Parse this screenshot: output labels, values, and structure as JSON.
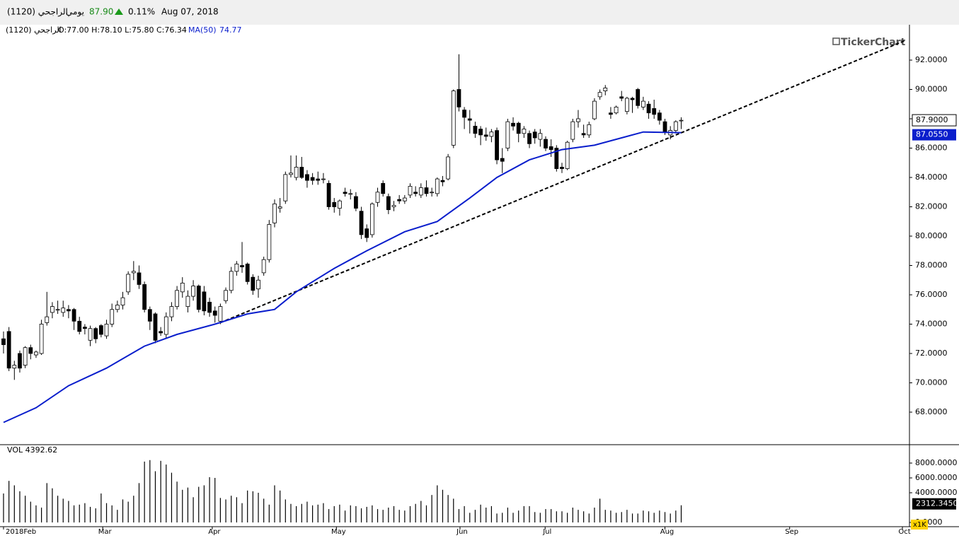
{
  "header": {
    "symbol": "الراجحي (1120)",
    "period": "يومي",
    "price": "87.90",
    "change": "0.11%",
    "date": "Aug 07, 2018"
  },
  "chart_data": {
    "type": "candlestick",
    "legend": {
      "symbol": "الراجحي (1120)",
      "ohlc": "O:77.00 H:78.10 L:75.80 C:76.34",
      "ma_name": "MA(50)",
      "ma_value": "74.77"
    },
    "logo": "TickerChart",
    "xlim": [
      -0.65,
      167.1
    ],
    "xticks": [
      {
        "value": 0,
        "label": "2018Feb"
      },
      {
        "value": 18.3,
        "label": "Mar"
      },
      {
        "value": 38.5,
        "label": "Apr"
      },
      {
        "value": 61.4,
        "label": "May"
      },
      {
        "value": 84.2,
        "label": "Jun"
      },
      {
        "value": 99.9,
        "label": "Jul"
      },
      {
        "value": 122,
        "label": "Aug"
      },
      {
        "value": 145,
        "label": "Sep"
      },
      {
        "value": 165.8,
        "label": "Oct"
      }
    ],
    "ylim": [
      65.83,
      94.17
    ],
    "yticks": [
      {
        "value": 68,
        "label": "68.0000"
      },
      {
        "value": 70,
        "label": "70.0000"
      },
      {
        "value": 72,
        "label": "72.0000"
      },
      {
        "value": 74,
        "label": "74.0000"
      },
      {
        "value": 76,
        "label": "76.0000"
      },
      {
        "value": 78,
        "label": "78.0000"
      },
      {
        "value": 80,
        "label": "80.0000"
      },
      {
        "value": 82,
        "label": "82.0000"
      },
      {
        "value": 84,
        "label": "84.0000"
      },
      {
        "value": 86,
        "label": "86.0000"
      },
      {
        "value": 88,
        "label": "88.0000"
      },
      {
        "value": 90,
        "label": "90.0000"
      },
      {
        "value": 92,
        "label": "92.0000"
      }
    ],
    "open": [
      73.0,
      73.5,
      71.0,
      72.0,
      71.2,
      72.4,
      71.9,
      72.0,
      74.1,
      74.8,
      75.0,
      74.8,
      75.0,
      75.0,
      74.2,
      73.8,
      72.9,
      73.7,
      73.9,
      73.2,
      74.0,
      75.0,
      75.3,
      76.2,
      77.5,
      77.5,
      76.7,
      75.0,
      74.7,
      73.5,
      73.3,
      74.5,
      75.2,
      76.2,
      75.2,
      75.9,
      76.6,
      76.2,
      75.5,
      74.9,
      74.2,
      75.6,
      76.3,
      77.6,
      78.0,
      78.1,
      77.2,
      76.4,
      77.5,
      78.4,
      80.9,
      81.9,
      82.4,
      84.2,
      84.0,
      84.7,
      84.2,
      84.0,
      83.9,
      83.9,
      83.6,
      82.3,
      81.9,
      83.0,
      82.9,
      82.7,
      81.7,
      80.5,
      80.1,
      82.3,
      83.6,
      82.7,
      82.0,
      82.5,
      82.4,
      82.8,
      83.0,
      82.8,
      83.3,
      83.0,
      82.9,
      83.8,
      83.9,
      86.2,
      90.0,
      88.6,
      88.0,
      87.5,
      87.3,
      86.9,
      86.8,
      87.2,
      85.3,
      86.0,
      87.7,
      87.7,
      87.0,
      87.0,
      87.1,
      86.6,
      86.6,
      86.1,
      86.0,
      84.7,
      84.6,
      86.6,
      87.8,
      87.0,
      86.9,
      88.0,
      89.5,
      89.9,
      88.4,
      88.4,
      89.5,
      88.5,
      89.4,
      90.0,
      88.8,
      89.0,
      88.7,
      88.4,
      87.8,
      86.9,
      87.2,
      87.9
    ],
    "close": [
      72.6,
      71.0,
      71.2,
      71.0,
      72.4,
      72.0,
      72.1,
      74.0,
      74.5,
      75.2,
      75.0,
      75.1,
      74.9,
      74.2,
      73.5,
      73.7,
      73.7,
      73.0,
      73.3,
      74.0,
      75.0,
      75.3,
      75.8,
      77.4,
      77.6,
      76.7,
      75.0,
      74.2,
      72.9,
      73.4,
      74.5,
      75.2,
      76.3,
      76.8,
      75.9,
      76.6,
      75.0,
      74.9,
      74.8,
      74.6,
      75.2,
      76.3,
      77.6,
      78.1,
      77.9,
      76.9,
      76.3,
      77.0,
      78.4,
      80.8,
      82.2,
      82.0,
      84.2,
      84.3,
      84.7,
      84.0,
      83.8,
      83.8,
      83.8,
      83.9,
      82.0,
      82.0,
      82.4,
      82.9,
      82.9,
      81.9,
      80.1,
      79.9,
      82.2,
      83.0,
      82.9,
      81.8,
      82.1,
      82.4,
      82.6,
      83.4,
      82.9,
      83.3,
      82.9,
      83.0,
      83.9,
      83.7,
      85.4,
      89.9,
      88.8,
      88.1,
      87.9,
      87.0,
      86.9,
      86.8,
      87.1,
      85.2,
      85.1,
      87.8,
      87.5,
      87.0,
      87.3,
      86.3,
      86.7,
      87.0,
      86.0,
      85.9,
      84.6,
      84.6,
      86.4,
      87.8,
      88.0,
      86.9,
      87.6,
      89.2,
      89.8,
      90.1,
      88.3,
      88.8,
      89.4,
      89.4,
      89.3,
      88.9,
      89.2,
      88.4,
      88.3,
      87.9,
      87.1,
      87.2,
      87.8,
      87.9
    ],
    "high": [
      73.5,
      73.8,
      71.5,
      72.2,
      72.5,
      72.6,
      72.2,
      74.3,
      76.2,
      75.5,
      75.6,
      75.6,
      75.3,
      75.1,
      74.5,
      74.0,
      73.9,
      73.8,
      74.0,
      74.3,
      75.4,
      75.6,
      76.2,
      77.6,
      78.3,
      78.0,
      76.9,
      75.2,
      74.8,
      73.8,
      74.8,
      75.5,
      76.6,
      77.2,
      76.3,
      77.0,
      76.7,
      76.6,
      75.8,
      75.2,
      75.4,
      76.5,
      77.9,
      78.3,
      79.6,
      78.2,
      77.4,
      77.3,
      78.6,
      81.1,
      82.5,
      82.6,
      84.4,
      85.5,
      85.5,
      85.4,
      84.5,
      84.3,
      84.4,
      84.3,
      83.8,
      82.6,
      82.5,
      83.3,
      83.2,
      83.0,
      82.0,
      80.8,
      82.3,
      83.3,
      83.8,
      82.9,
      82.4,
      82.8,
      82.8,
      83.6,
      83.4,
      83.6,
      83.8,
      83.3,
      84.0,
      84.1,
      85.6,
      90.0,
      92.4,
      88.8,
      88.6,
      87.8,
      87.5,
      87.4,
      87.3,
      87.4,
      86.0,
      88.0,
      88.1,
      87.8,
      87.5,
      87.2,
      87.3,
      87.3,
      86.8,
      86.6,
      86.2,
      85.0,
      86.5,
      88.0,
      88.6,
      87.6,
      87.8,
      89.4,
      90.0,
      90.3,
      88.8,
      88.9,
      89.9,
      89.5,
      89.5,
      90.1,
      89.5,
      89.2,
      89.3,
      88.6,
      88.0,
      87.5,
      87.9,
      88.1
    ],
    "low": [
      72.0,
      70.8,
      70.2,
      70.7,
      71.0,
      71.6,
      71.7,
      71.9,
      73.9,
      74.4,
      74.7,
      74.5,
      74.4,
      73.6,
      73.3,
      73.3,
      72.5,
      72.7,
      73.1,
      73.0,
      73.8,
      74.8,
      75.0,
      76.0,
      77.0,
      76.4,
      74.8,
      73.6,
      72.7,
      73.2,
      73.0,
      74.2,
      75.0,
      75.8,
      74.8,
      75.6,
      74.8,
      74.6,
      74.5,
      74.1,
      74.0,
      75.4,
      76.1,
      77.3,
      77.5,
      76.7,
      76.0,
      75.8,
      77.3,
      78.2,
      80.6,
      81.6,
      82.2,
      84.0,
      83.8,
      83.9,
      83.3,
      83.5,
      83.5,
      83.6,
      81.8,
      81.6,
      81.4,
      82.7,
      82.5,
      81.7,
      79.8,
      79.6,
      79.9,
      82.0,
      82.7,
      81.5,
      81.7,
      82.2,
      82.2,
      82.6,
      82.7,
      82.6,
      82.7,
      82.7,
      82.7,
      83.4,
      83.8,
      86.0,
      88.5,
      87.3,
      87.0,
      86.7,
      86.2,
      86.5,
      86.4,
      84.9,
      84.3,
      85.8,
      87.2,
      86.4,
      86.7,
      86.0,
      86.3,
      86.1,
      85.8,
      85.4,
      84.4,
      84.3,
      84.5,
      86.4,
      87.4,
      86.7,
      86.7,
      87.9,
      89.3,
      89.6,
      88.0,
      88.3,
      89.2,
      88.3,
      88.4,
      88.7,
      88.6,
      88.0,
      88.0,
      87.6,
      86.9,
      86.6,
      87.0,
      87.3
    ],
    "up_color": "#ffffff",
    "down_color": "#000000",
    "ma": {
      "name": "MA(50)",
      "color": "#0a1ecc",
      "x": [
        0,
        6,
        12,
        19,
        26,
        32,
        39,
        45,
        50,
        54,
        61,
        67,
        74,
        80,
        86,
        91,
        97,
        103,
        109,
        114,
        118,
        125
      ],
      "values": [
        67.3,
        68.3,
        69.8,
        71.0,
        72.5,
        73.3,
        74.0,
        74.7,
        75.0,
        76.2,
        77.8,
        79.0,
        80.3,
        81.0,
        82.6,
        84.0,
        85.2,
        85.9,
        86.2,
        86.7,
        87.1,
        87.055
      ]
    },
    "trendline": {
      "x": [
        40,
        166.4
      ],
      "values": [
        74.1,
        93.35
      ]
    },
    "last_price": {
      "value": 87.9,
      "label": "87.9000"
    },
    "ma_last": {
      "value": 87.055,
      "label": "87.0550"
    },
    "volume_title": "VOL 4392.62",
    "volume": [
      3900,
      5600,
      5000,
      4200,
      3600,
      2800,
      2300,
      2000,
      5300,
      4600,
      3600,
      3200,
      2900,
      2300,
      2400,
      2600,
      2100,
      1900,
      3900,
      2600,
      2300,
      1700,
      3100,
      2800,
      3600,
      5300,
      8200,
      8400,
      6900,
      8300,
      7800,
      6700,
      5500,
      4400,
      4700,
      3400,
      4800,
      5000,
      6100,
      6000,
      3300,
      3100,
      3600,
      3400,
      2600,
      4300,
      4200,
      4000,
      3200,
      2400,
      5000,
      4300,
      3100,
      2500,
      2200,
      2500,
      2800,
      2300,
      2400,
      2600,
      1800,
      2200,
      2400,
      1600,
      2300,
      2200,
      1900,
      2100,
      2300,
      1800,
      1700,
      2000,
      2200,
      1700,
      1600,
      2200,
      2500,
      2900,
      2300,
      3700,
      5000,
      4400,
      3700,
      3200,
      1800,
      2200,
      1300,
      1700,
      2400,
      2000,
      2200,
      1200,
      1300,
      2000,
      1300,
      1600,
      2200,
      2200,
      1400,
      1300,
      1800,
      1800,
      1500,
      1500,
      1300,
      2000,
      1700,
      1500,
      1200,
      2000,
      3200,
      1700,
      1600,
      1300,
      1400,
      1700,
      1200,
      1200,
      1600,
      1500,
      1300,
      1600,
      1400,
      1200,
      1600,
      2312.345
    ],
    "vlim": [
      0,
      10190
    ],
    "vticks": [
      {
        "value": 8000,
        "label": "8000.0000"
      },
      {
        "value": 6000,
        "label": "6000.0000"
      },
      {
        "value": 4000,
        "label": "4000.0000"
      },
      {
        "value": 0,
        "label": "0.0000"
      }
    ],
    "volume_last_label": "2312.3450",
    "volume_unit": "x1K"
  }
}
